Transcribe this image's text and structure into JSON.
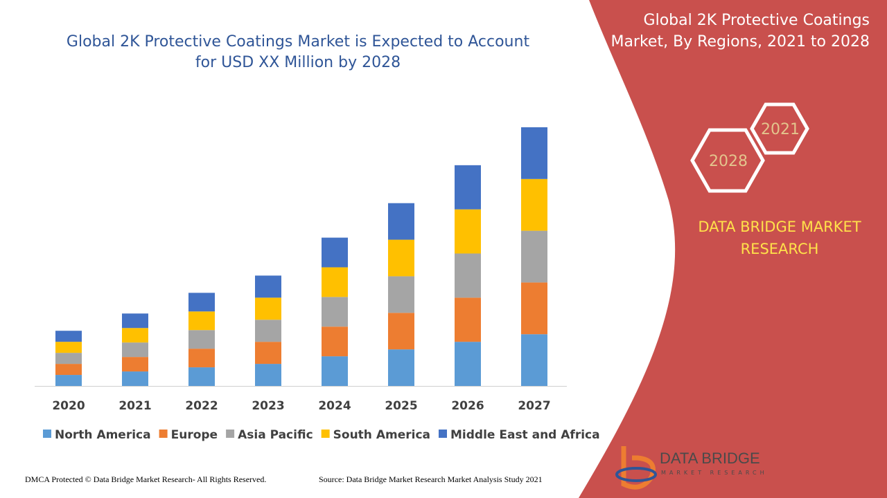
{
  "chart_data": {
    "type": "stacked-bar",
    "title": "Global 2K Protective Coatings Market is Expected to Account for USD XX Million by 2028",
    "categories": [
      "2020",
      "2021",
      "2022",
      "2023",
      "2024",
      "2025",
      "2026",
      "2027"
    ],
    "series": [
      {
        "name": "North America",
        "color": "#5b9bd5",
        "values": [
          16,
          21,
          27,
          32,
          43,
          53,
          64,
          75
        ]
      },
      {
        "name": "Europe",
        "color": "#ed7d31",
        "values": [
          16,
          21,
          27,
          32,
          43,
          53,
          64,
          75
        ]
      },
      {
        "name": "Asia Pacific",
        "color": "#a5a5a5",
        "values": [
          16,
          21,
          27,
          32,
          43,
          53,
          64,
          75
        ]
      },
      {
        "name": "South America",
        "color": "#ffc000",
        "values": [
          16,
          21,
          27,
          32,
          43,
          53,
          64,
          75
        ]
      },
      {
        "name": "Middle East and Africa",
        "color": "#4472c4",
        "values": [
          16,
          21,
          27,
          32,
          43,
          53,
          64,
          75
        ]
      }
    ]
  },
  "side_panel": {
    "title": "Global 2K Protective Coatings Market, By Regions, 2021 to 2028",
    "hex_labels": [
      "2021",
      "2028"
    ],
    "brand": "DATA BRIDGE MARKET RESEARCH"
  },
  "logo": {
    "name": "DATA BRIDGE",
    "tagline": "MARKET RESEARCH"
  },
  "footer": {
    "copyright": "DMCA Protected © Data Bridge Market Research- All Rights Reserved.",
    "source": "Source: Data Bridge Market Research Market Analysis Study 2021"
  }
}
